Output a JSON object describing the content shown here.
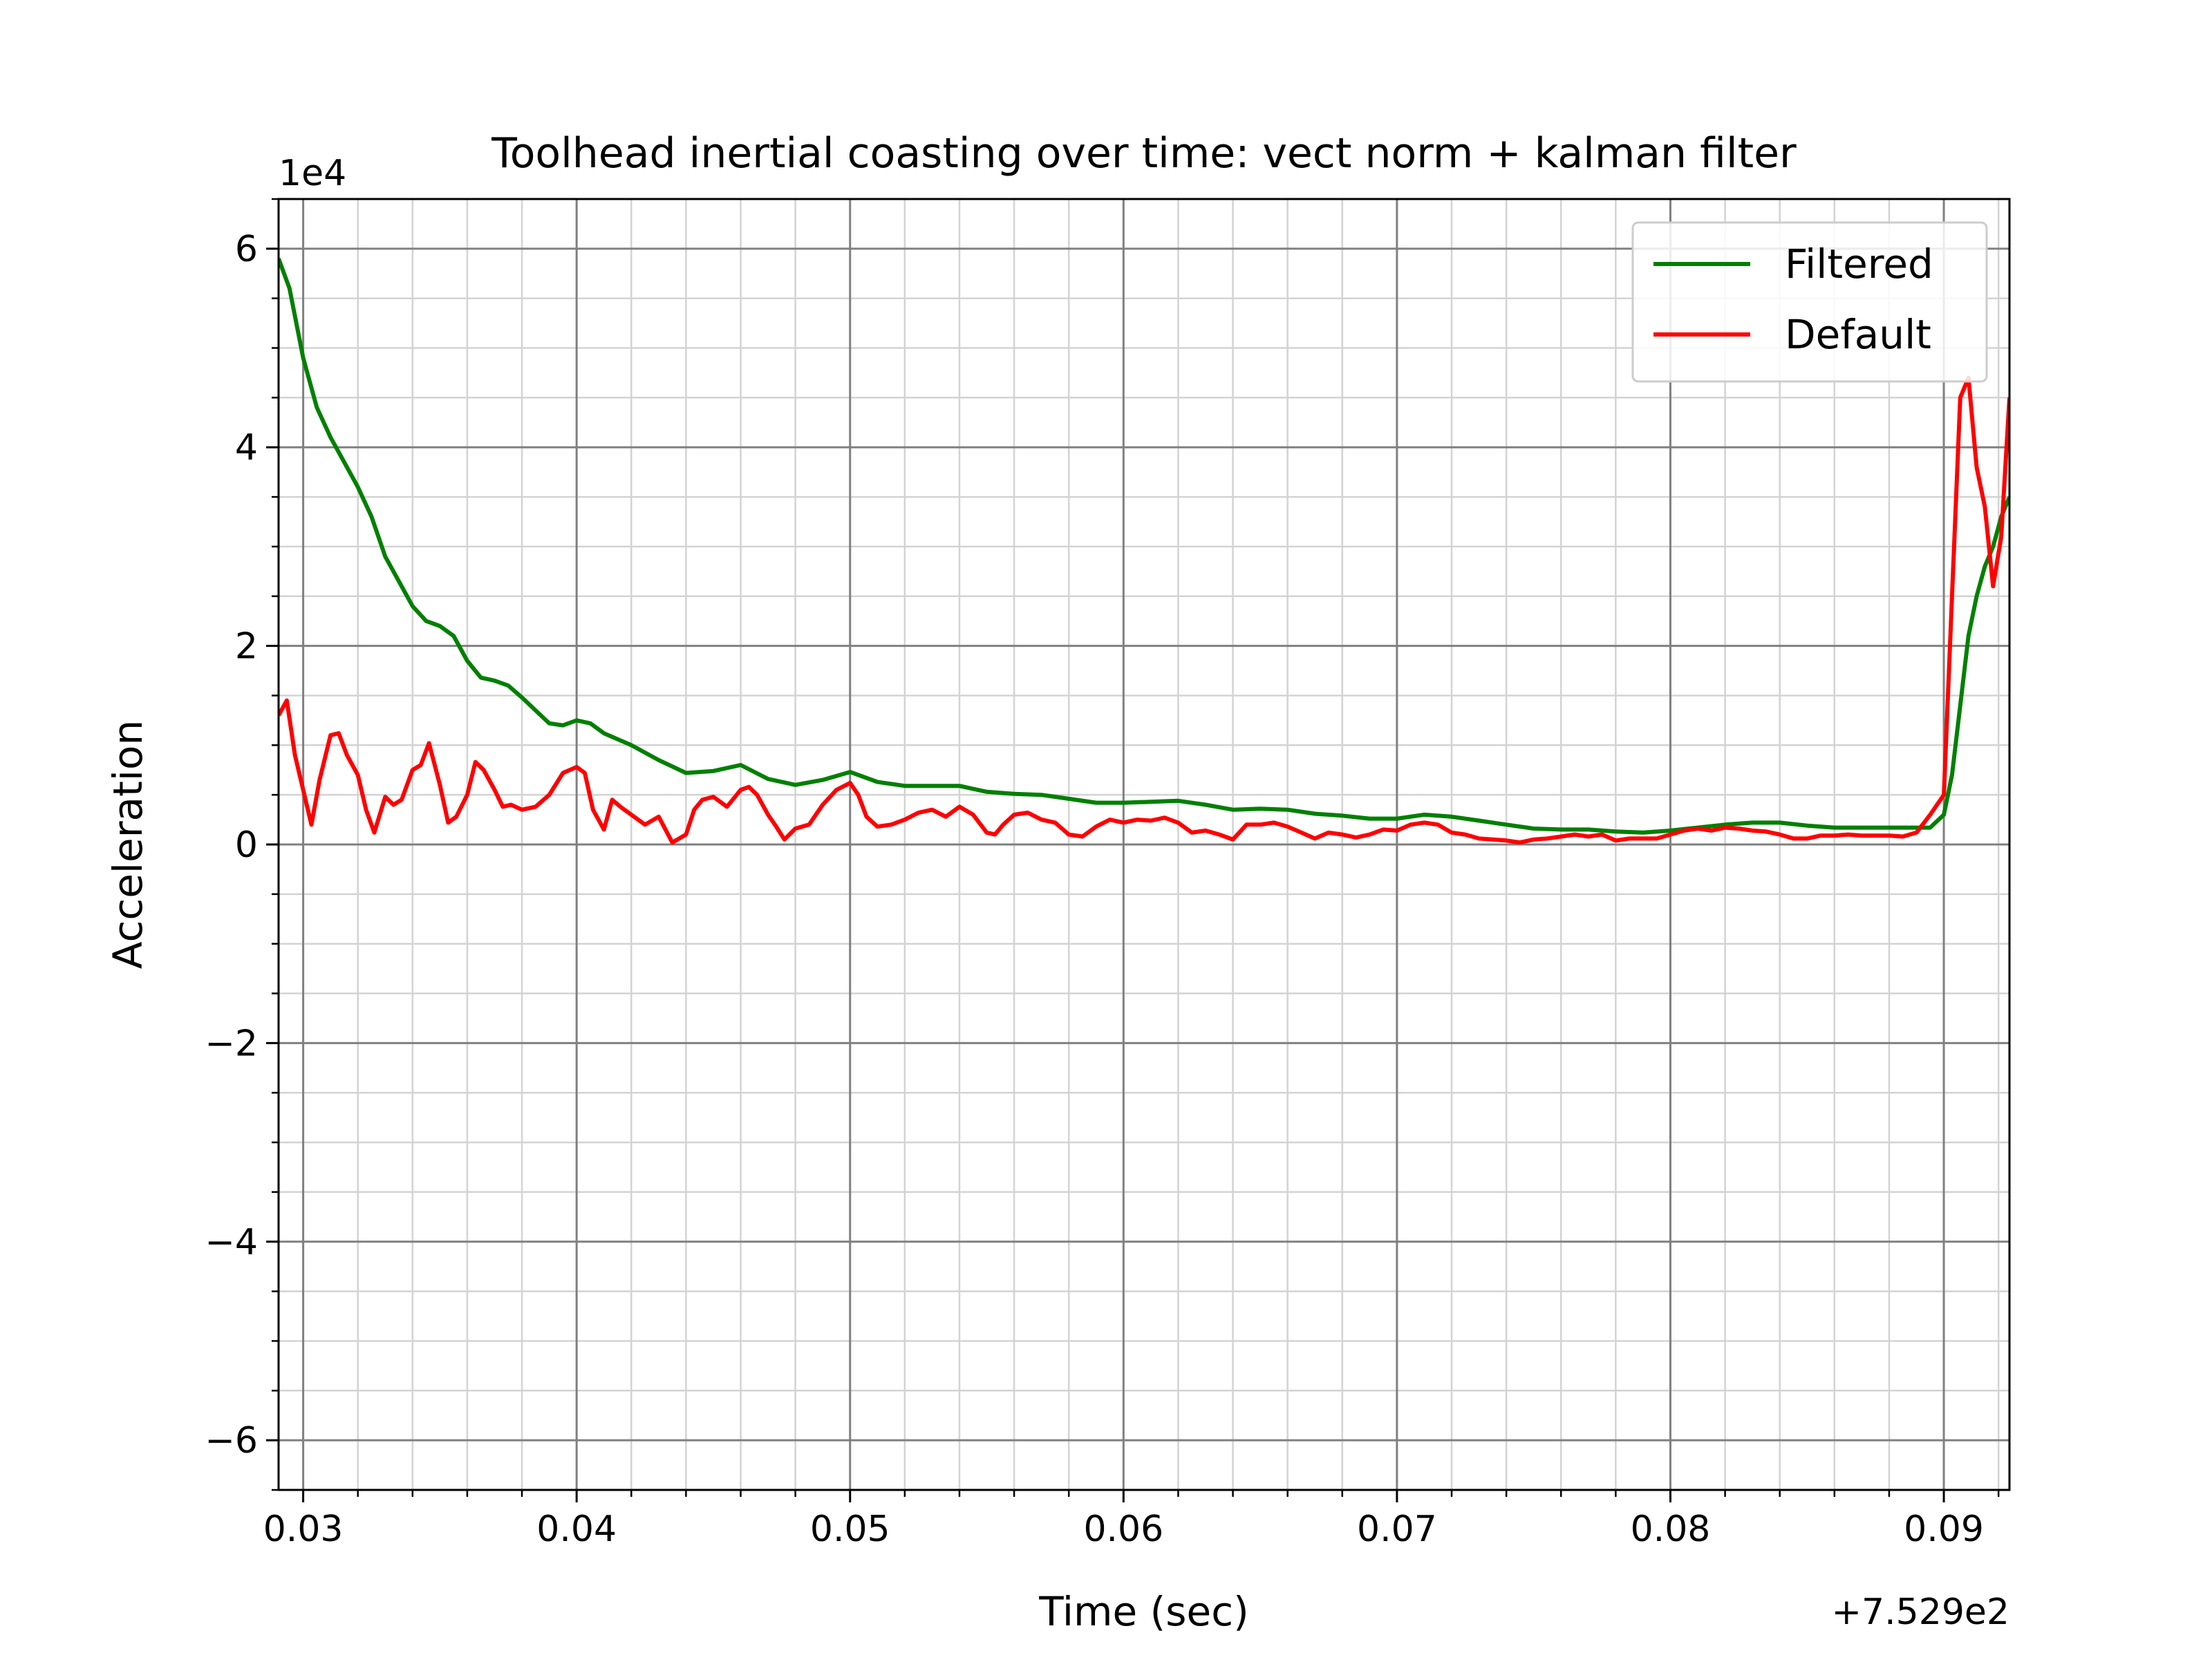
{
  "chart_data": {
    "type": "line",
    "title": "Toolhead inertial coasting over time: vect norm + kalman filter",
    "xlabel": "Time (sec)",
    "ylabel": "Acceleration",
    "x_offset_label": "+7.529e2",
    "y_scale_label": "1e4",
    "xlim": [
      0.0291,
      0.0924
    ],
    "ylim": [
      -6.5,
      6.5
    ],
    "x_ticks": [
      0.03,
      0.04,
      0.05,
      0.06,
      0.07,
      0.08,
      0.09
    ],
    "x_tick_labels": [
      "0.03",
      "0.04",
      "0.05",
      "0.06",
      "0.07",
      "0.08",
      "0.09"
    ],
    "y_ticks": [
      -6,
      -4,
      -2,
      0,
      2,
      4,
      6
    ],
    "y_tick_labels": [
      "−6",
      "−4",
      "−2",
      "0",
      "2",
      "4",
      "6"
    ],
    "grid": "major and minor",
    "legend_position": "top-right",
    "series": [
      {
        "name": "Filtered",
        "color": "#008000",
        "points": [
          [
            0.0291,
            5.9
          ],
          [
            0.0295,
            5.6
          ],
          [
            0.03,
            4.9
          ],
          [
            0.0305,
            4.4
          ],
          [
            0.031,
            4.1
          ],
          [
            0.032,
            3.6
          ],
          [
            0.0325,
            3.3
          ],
          [
            0.033,
            2.9
          ],
          [
            0.034,
            2.4
          ],
          [
            0.0345,
            2.25
          ],
          [
            0.035,
            2.2
          ],
          [
            0.0355,
            2.1
          ],
          [
            0.036,
            1.85
          ],
          [
            0.0365,
            1.68
          ],
          [
            0.037,
            1.65
          ],
          [
            0.0375,
            1.6
          ],
          [
            0.038,
            1.48
          ],
          [
            0.0385,
            1.35
          ],
          [
            0.039,
            1.22
          ],
          [
            0.0395,
            1.2
          ],
          [
            0.04,
            1.25
          ],
          [
            0.0405,
            1.22
          ],
          [
            0.041,
            1.12
          ],
          [
            0.042,
            1.0
          ],
          [
            0.043,
            0.85
          ],
          [
            0.044,
            0.72
          ],
          [
            0.045,
            0.74
          ],
          [
            0.046,
            0.8
          ],
          [
            0.047,
            0.66
          ],
          [
            0.048,
            0.6
          ],
          [
            0.049,
            0.65
          ],
          [
            0.05,
            0.73
          ],
          [
            0.051,
            0.63
          ],
          [
            0.052,
            0.59
          ],
          [
            0.053,
            0.59
          ],
          [
            0.054,
            0.59
          ],
          [
            0.055,
            0.53
          ],
          [
            0.056,
            0.51
          ],
          [
            0.057,
            0.5
          ],
          [
            0.058,
            0.46
          ],
          [
            0.059,
            0.42
          ],
          [
            0.06,
            0.42
          ],
          [
            0.061,
            0.43
          ],
          [
            0.062,
            0.44
          ],
          [
            0.063,
            0.4
          ],
          [
            0.064,
            0.35
          ],
          [
            0.065,
            0.36
          ],
          [
            0.066,
            0.35
          ],
          [
            0.067,
            0.31
          ],
          [
            0.068,
            0.29
          ],
          [
            0.069,
            0.26
          ],
          [
            0.07,
            0.26
          ],
          [
            0.071,
            0.3
          ],
          [
            0.072,
            0.28
          ],
          [
            0.073,
            0.24
          ],
          [
            0.074,
            0.2
          ],
          [
            0.075,
            0.16
          ],
          [
            0.076,
            0.15
          ],
          [
            0.077,
            0.15
          ],
          [
            0.078,
            0.13
          ],
          [
            0.079,
            0.12
          ],
          [
            0.08,
            0.14
          ],
          [
            0.081,
            0.17
          ],
          [
            0.082,
            0.2
          ],
          [
            0.083,
            0.22
          ],
          [
            0.084,
            0.22
          ],
          [
            0.085,
            0.19
          ],
          [
            0.086,
            0.17
          ],
          [
            0.087,
            0.17
          ],
          [
            0.088,
            0.17
          ],
          [
            0.089,
            0.17
          ],
          [
            0.0895,
            0.17
          ],
          [
            0.09,
            0.3
          ],
          [
            0.0903,
            0.7
          ],
          [
            0.0906,
            1.4
          ],
          [
            0.0909,
            2.1
          ],
          [
            0.0912,
            2.5
          ],
          [
            0.0915,
            2.8
          ],
          [
            0.0918,
            3.0
          ],
          [
            0.0921,
            3.3
          ],
          [
            0.0924,
            3.5
          ]
        ]
      },
      {
        "name": "Default",
        "color": "#ff0000",
        "points": [
          [
            0.0291,
            1.3
          ],
          [
            0.0294,
            1.45
          ],
          [
            0.0297,
            0.9
          ],
          [
            0.03,
            0.55
          ],
          [
            0.0303,
            0.2
          ],
          [
            0.0306,
            0.65
          ],
          [
            0.031,
            1.1
          ],
          [
            0.0313,
            1.12
          ],
          [
            0.0316,
            0.9
          ],
          [
            0.032,
            0.7
          ],
          [
            0.0323,
            0.35
          ],
          [
            0.0326,
            0.12
          ],
          [
            0.033,
            0.48
          ],
          [
            0.0333,
            0.4
          ],
          [
            0.0336,
            0.45
          ],
          [
            0.034,
            0.75
          ],
          [
            0.0343,
            0.8
          ],
          [
            0.0346,
            1.02
          ],
          [
            0.035,
            0.6
          ],
          [
            0.0353,
            0.22
          ],
          [
            0.0356,
            0.28
          ],
          [
            0.036,
            0.5
          ],
          [
            0.0363,
            0.83
          ],
          [
            0.0366,
            0.75
          ],
          [
            0.037,
            0.55
          ],
          [
            0.0373,
            0.38
          ],
          [
            0.0376,
            0.4
          ],
          [
            0.038,
            0.35
          ],
          [
            0.0385,
            0.38
          ],
          [
            0.039,
            0.5
          ],
          [
            0.0395,
            0.72
          ],
          [
            0.04,
            0.78
          ],
          [
            0.0403,
            0.72
          ],
          [
            0.0406,
            0.35
          ],
          [
            0.041,
            0.15
          ],
          [
            0.0413,
            0.45
          ],
          [
            0.0416,
            0.38
          ],
          [
            0.042,
            0.3
          ],
          [
            0.0425,
            0.2
          ],
          [
            0.043,
            0.28
          ],
          [
            0.0435,
            0.02
          ],
          [
            0.044,
            0.1
          ],
          [
            0.0443,
            0.35
          ],
          [
            0.0446,
            0.45
          ],
          [
            0.045,
            0.48
          ],
          [
            0.0455,
            0.38
          ],
          [
            0.046,
            0.55
          ],
          [
            0.0463,
            0.58
          ],
          [
            0.0466,
            0.5
          ],
          [
            0.047,
            0.3
          ],
          [
            0.0473,
            0.18
          ],
          [
            0.0476,
            0.05
          ],
          [
            0.048,
            0.16
          ],
          [
            0.0485,
            0.2
          ],
          [
            0.049,
            0.4
          ],
          [
            0.0495,
            0.55
          ],
          [
            0.05,
            0.62
          ],
          [
            0.0503,
            0.5
          ],
          [
            0.0506,
            0.28
          ],
          [
            0.051,
            0.18
          ],
          [
            0.0515,
            0.2
          ],
          [
            0.052,
            0.25
          ],
          [
            0.0525,
            0.32
          ],
          [
            0.053,
            0.35
          ],
          [
            0.0535,
            0.28
          ],
          [
            0.054,
            0.38
          ],
          [
            0.0545,
            0.3
          ],
          [
            0.055,
            0.12
          ],
          [
            0.0553,
            0.1
          ],
          [
            0.0556,
            0.2
          ],
          [
            0.056,
            0.3
          ],
          [
            0.0565,
            0.32
          ],
          [
            0.057,
            0.25
          ],
          [
            0.0575,
            0.22
          ],
          [
            0.058,
            0.1
          ],
          [
            0.0585,
            0.08
          ],
          [
            0.059,
            0.18
          ],
          [
            0.0595,
            0.25
          ],
          [
            0.06,
            0.22
          ],
          [
            0.0605,
            0.25
          ],
          [
            0.061,
            0.24
          ],
          [
            0.0615,
            0.27
          ],
          [
            0.062,
            0.22
          ],
          [
            0.0625,
            0.12
          ],
          [
            0.063,
            0.14
          ],
          [
            0.0635,
            0.1
          ],
          [
            0.064,
            0.05
          ],
          [
            0.0645,
            0.2
          ],
          [
            0.065,
            0.2
          ],
          [
            0.0655,
            0.22
          ],
          [
            0.066,
            0.18
          ],
          [
            0.0665,
            0.12
          ],
          [
            0.067,
            0.06
          ],
          [
            0.0675,
            0.12
          ],
          [
            0.068,
            0.1
          ],
          [
            0.0685,
            0.07
          ],
          [
            0.069,
            0.1
          ],
          [
            0.0695,
            0.15
          ],
          [
            0.07,
            0.14
          ],
          [
            0.0705,
            0.2
          ],
          [
            0.071,
            0.22
          ],
          [
            0.0715,
            0.2
          ],
          [
            0.072,
            0.12
          ],
          [
            0.0725,
            0.1
          ],
          [
            0.073,
            0.06
          ],
          [
            0.0735,
            0.05
          ],
          [
            0.074,
            0.04
          ],
          [
            0.0745,
            0.02
          ],
          [
            0.075,
            0.05
          ],
          [
            0.0755,
            0.06
          ],
          [
            0.076,
            0.08
          ],
          [
            0.0765,
            0.1
          ],
          [
            0.077,
            0.08
          ],
          [
            0.0775,
            0.1
          ],
          [
            0.078,
            0.04
          ],
          [
            0.0785,
            0.06
          ],
          [
            0.079,
            0.06
          ],
          [
            0.0795,
            0.06
          ],
          [
            0.08,
            0.1
          ],
          [
            0.0805,
            0.14
          ],
          [
            0.081,
            0.16
          ],
          [
            0.0815,
            0.14
          ],
          [
            0.082,
            0.17
          ],
          [
            0.0825,
            0.16
          ],
          [
            0.083,
            0.14
          ],
          [
            0.0835,
            0.13
          ],
          [
            0.084,
            0.1
          ],
          [
            0.0845,
            0.06
          ],
          [
            0.085,
            0.06
          ],
          [
            0.0855,
            0.09
          ],
          [
            0.086,
            0.09
          ],
          [
            0.0865,
            0.1
          ],
          [
            0.087,
            0.09
          ],
          [
            0.0875,
            0.09
          ],
          [
            0.088,
            0.09
          ],
          [
            0.0885,
            0.08
          ],
          [
            0.089,
            0.12
          ],
          [
            0.0895,
            0.3
          ],
          [
            0.09,
            0.5
          ],
          [
            0.0903,
            2.5
          ],
          [
            0.0906,
            4.5
          ],
          [
            0.0909,
            4.7
          ],
          [
            0.0912,
            3.8
          ],
          [
            0.0915,
            3.4
          ],
          [
            0.0918,
            2.6
          ],
          [
            0.0921,
            3.1
          ],
          [
            0.0924,
            4.5
          ]
        ]
      }
    ]
  }
}
